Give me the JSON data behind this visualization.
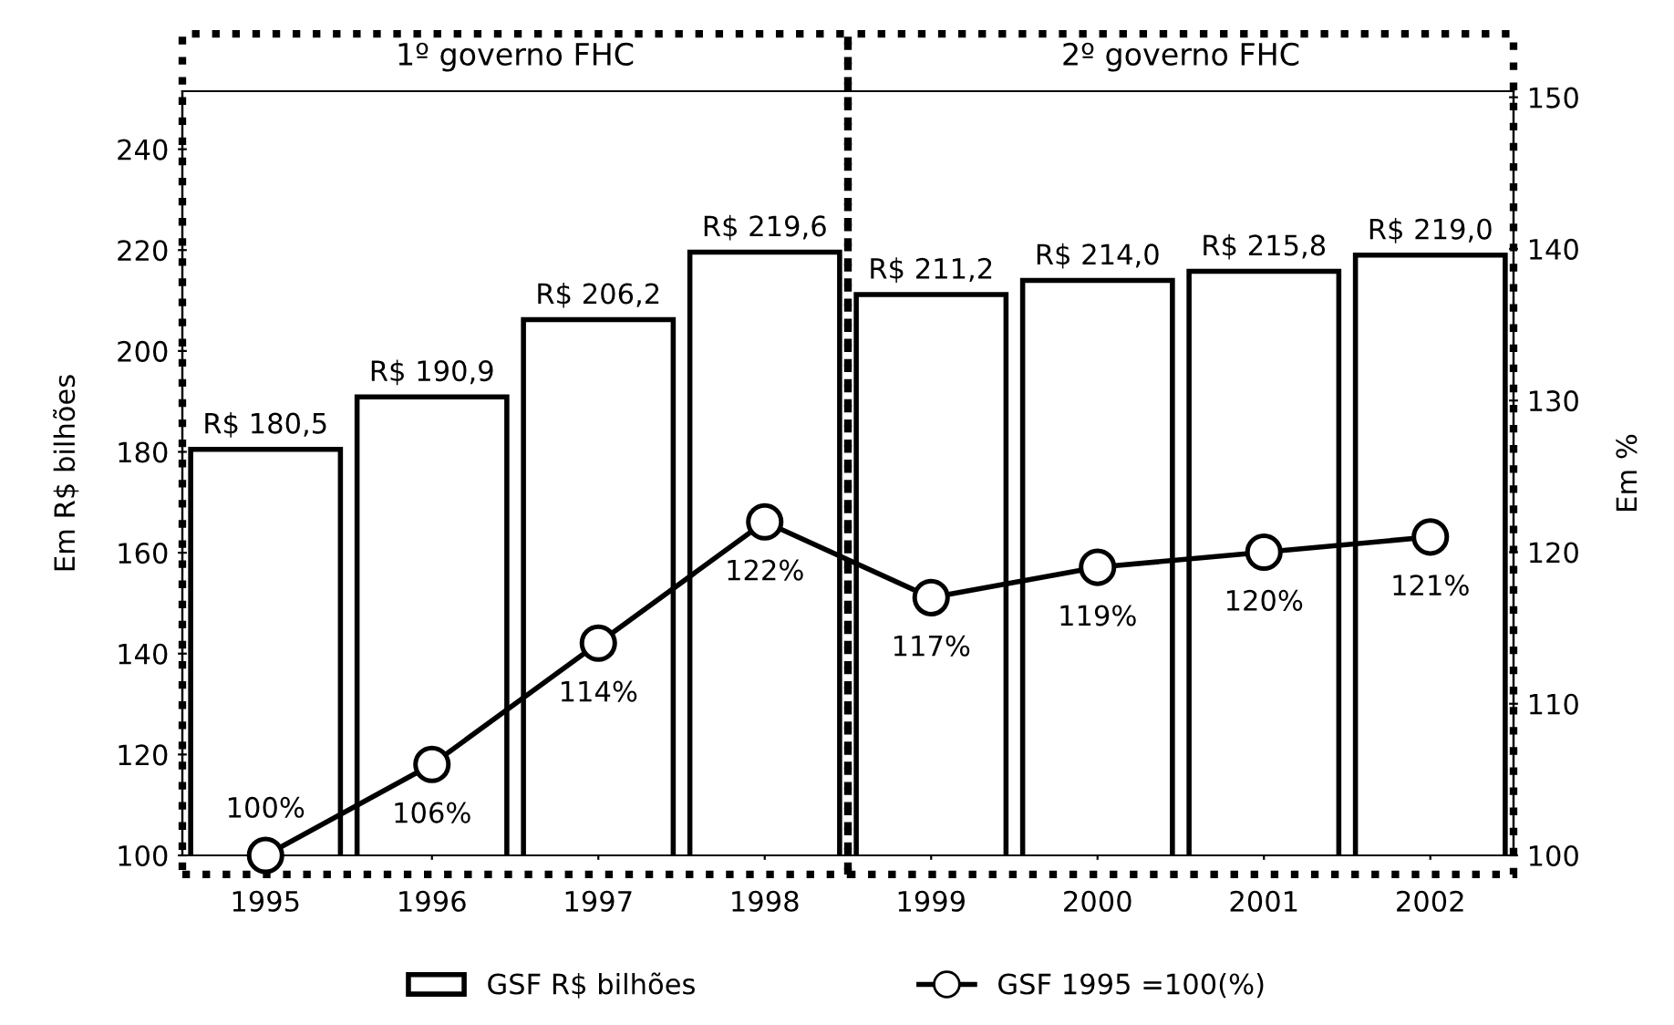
{
  "chart_data": {
    "type": "bar",
    "categories": [
      "1995",
      "1996",
      "1997",
      "1998",
      "1999",
      "2000",
      "2001",
      "2002"
    ],
    "ylabel": "Em R$ bilhões",
    "y2label": "Em %",
    "ylim": [
      100,
      251.5
    ],
    "yticks": [
      100,
      120,
      140,
      160,
      180,
      200,
      220,
      240
    ],
    "y2lim": [
      100,
      150.4
    ],
    "y2ticks": [
      100,
      110,
      120,
      130,
      140,
      150
    ],
    "series": [
      {
        "name": "GSF R$ bilhões",
        "color": "#ffffff",
        "values": [
          180.5,
          190.9,
          206.2,
          219.6,
          211.2,
          214.0,
          215.8,
          219.0
        ],
        "value_labels": [
          "R$ 180,5",
          "R$ 190,9",
          "R$ 206,2",
          "R$ 219,6",
          "R$ 211,2",
          "R$ 214,0",
          "R$ 215,8",
          "R$ 219,0"
        ]
      },
      {
        "name": "GSF 1995 =100(%)",
        "type": "line",
        "axis": "y2",
        "color": "#000000",
        "marker": "circle",
        "line_style": "solid",
        "values": [
          100,
          106,
          114,
          122,
          117,
          119,
          120,
          121
        ],
        "value_labels": [
          "100%",
          "106%",
          "114%",
          "122%",
          "117%",
          "119%",
          "120%",
          "121%"
        ]
      }
    ],
    "annotations": [
      "1º governo FHC",
      "2º governo FHC"
    ],
    "grid": false,
    "legend": "bottom"
  }
}
